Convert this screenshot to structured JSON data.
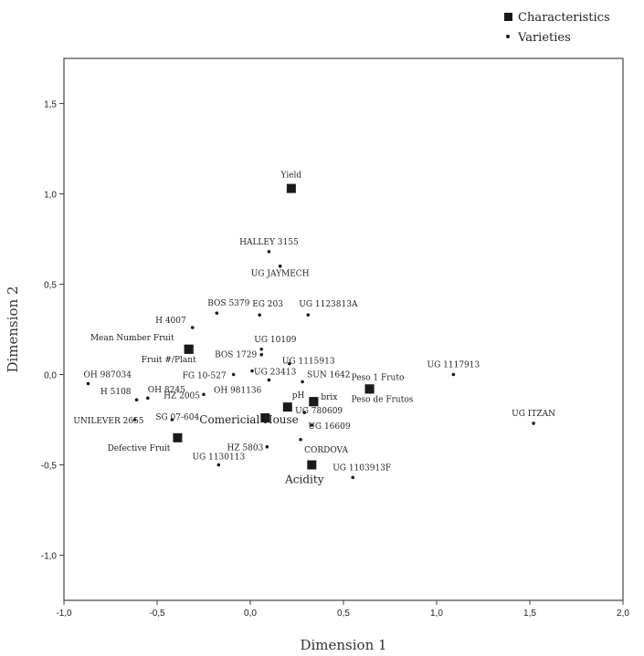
{
  "chart_data": {
    "type": "scatter",
    "xlabel": "Dimension 1",
    "ylabel": "Dimension 2",
    "xlim": [
      -1.0,
      2.0
    ],
    "ylim": [
      -1.25,
      1.75
    ],
    "x_ticks": [
      -1.0,
      -0.5,
      0.0,
      0.5,
      1.0,
      1.5,
      2.0
    ],
    "x_tick_labels": [
      "-1,0",
      "-0,5",
      "0,0",
      "0,5",
      "1,0",
      "1,5",
      "2,0"
    ],
    "y_ticks": [
      -1.0,
      -0.5,
      0.0,
      0.5,
      1.0,
      1.5
    ],
    "y_tick_labels": [
      "-1,0",
      "-0,5",
      "0,0",
      "0,5",
      "1,0",
      "1,5"
    ],
    "legend": {
      "position": "top-right",
      "entries": [
        {
          "label": "Characteristics",
          "marker": "square"
        },
        {
          "label": "Varieties",
          "marker": "dot"
        }
      ]
    },
    "series": [
      {
        "name": "Characteristics",
        "marker": "square",
        "points": [
          {
            "label": "Yield",
            "x": 0.22,
            "y": 1.03
          },
          {
            "label": "Mean Number Fruit",
            "x": -0.33,
            "y": 0.14
          },
          {
            "label": "Fruit #/Plant",
            "x": -0.33,
            "y": 0.14
          },
          {
            "label": "Peso 1 Fruto",
            "x": 0.64,
            "y": -0.08
          },
          {
            "label": "Peso de Frutos",
            "x": 0.64,
            "y": -0.08
          },
          {
            "label": "pH",
            "x": 0.34,
            "y": -0.15
          },
          {
            "label": "brix",
            "x": 0.34,
            "y": -0.15
          },
          {
            "label": "Comericial House",
            "x": 0.2,
            "y": -0.18
          },
          {
            "label": "",
            "x": 0.08,
            "y": -0.24
          },
          {
            "label": "Defective Fruit",
            "x": -0.39,
            "y": -0.35
          },
          {
            "label": "Acidity",
            "x": 0.33,
            "y": -0.5
          }
        ]
      },
      {
        "name": "Varieties",
        "marker": "dot",
        "points": [
          {
            "label": "HALLEY 3155",
            "x": 0.1,
            "y": 0.68
          },
          {
            "label": "UG JAYMECH",
            "x": 0.16,
            "y": 0.6
          },
          {
            "label": "BOS 5379",
            "x": -0.18,
            "y": 0.34
          },
          {
            "label": "EG 203",
            "x": 0.05,
            "y": 0.33
          },
          {
            "label": "UG 1123813A",
            "x": 0.31,
            "y": 0.33
          },
          {
            "label": "H 4007",
            "x": -0.31,
            "y": 0.26
          },
          {
            "label": "UG 10109",
            "x": 0.06,
            "y": 0.14
          },
          {
            "label": "BOS 1729",
            "x": 0.06,
            "y": 0.11
          },
          {
            "label": "UG 1115913",
            "x": 0.21,
            "y": 0.06
          },
          {
            "label": "UG 1117913",
            "x": 1.09,
            "y": 0.0
          },
          {
            "label": "OH 987034",
            "x": -0.87,
            "y": -0.05
          },
          {
            "label": "FG 10-527",
            "x": -0.09,
            "y": 0.0
          },
          {
            "label": "UG 23413",
            "x": 0.01,
            "y": 0.02
          },
          {
            "label": "OH 981136",
            "x": 0.1,
            "y": -0.03
          },
          {
            "label": "SUN 1642",
            "x": 0.28,
            "y": -0.04
          },
          {
            "label": "H 5108",
            "x": -0.61,
            "y": -0.14
          },
          {
            "label": "OH 8245",
            "x": -0.55,
            "y": -0.13
          },
          {
            "label": "HZ 2005",
            "x": -0.25,
            "y": -0.11
          },
          {
            "label": "UNILEVER 2655",
            "x": -0.62,
            "y": -0.25
          },
          {
            "label": "SG 07-604",
            "x": -0.42,
            "y": -0.25
          },
          {
            "label": "UG 780609",
            "x": 0.29,
            "y": -0.21
          },
          {
            "label": "UG 16609",
            "x": 0.33,
            "y": -0.28
          },
          {
            "label": "UG ITZAN",
            "x": 1.52,
            "y": -0.27
          },
          {
            "label": "CORDOVA",
            "x": 0.27,
            "y": -0.36
          },
          {
            "label": "HZ 5803",
            "x": 0.09,
            "y": -0.4
          },
          {
            "label": "UG 1130113",
            "x": -0.17,
            "y": -0.5
          },
          {
            "label": "UG 1103913F",
            "x": 0.55,
            "y": -0.57
          }
        ]
      }
    ]
  }
}
